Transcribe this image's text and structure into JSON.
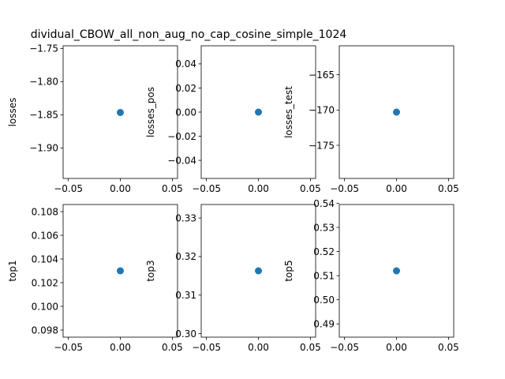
{
  "figure": {
    "title": "dividual_CBOW_all_non_aug_no_cap_cosine_simple_1024"
  },
  "colors": {
    "point": "#1f77b4",
    "axes": "#000000",
    "background": "#ffffff"
  },
  "chart_data": [
    {
      "type": "scatter",
      "ylabel": "losses",
      "x": [
        0.0
      ],
      "y": [
        -1.8466
      ],
      "xlim": [
        -0.055,
        0.055
      ],
      "ylim": [
        -1.946,
        -1.746
      ],
      "xticks": [
        -0.05,
        0.0,
        0.05
      ],
      "xtick_labels": [
        "−0.05",
        "0.00",
        "0.05"
      ],
      "yticks": [
        -1.9,
        -1.85,
        -1.8,
        -1.75
      ],
      "ytick_labels": [
        "−1.90",
        "−1.85",
        "−1.80",
        "−1.75"
      ]
    },
    {
      "type": "scatter",
      "ylabel": "losses_pos",
      "x": [
        0.0
      ],
      "y": [
        0.0
      ],
      "xlim": [
        -0.055,
        0.055
      ],
      "ylim": [
        -0.055,
        0.055
      ],
      "xticks": [
        -0.05,
        0.0,
        0.05
      ],
      "xtick_labels": [
        "−0.05",
        "0.00",
        "0.05"
      ],
      "yticks": [
        -0.04,
        -0.02,
        0.0,
        0.02,
        0.04
      ],
      "ytick_labels": [
        "−0.04",
        "−0.02",
        "0.00",
        "0.02",
        "0.04"
      ]
    },
    {
      "type": "scatter",
      "ylabel": "losses_test",
      "x": [
        0.0
      ],
      "y": [
        -170.3
      ],
      "xlim": [
        -0.055,
        0.055
      ],
      "ylim": [
        -179.7,
        -160.9
      ],
      "xticks": [
        -0.05,
        0.0,
        0.05
      ],
      "xtick_labels": [
        "−0.05",
        "0.00",
        "0.05"
      ],
      "yticks": [
        -175,
        -170,
        -165
      ],
      "ytick_labels": [
        "−175",
        "−170",
        "−165"
      ]
    },
    {
      "type": "scatter",
      "ylabel": "top1",
      "x": [
        0.0
      ],
      "y": [
        0.103
      ],
      "xlim": [
        -0.055,
        0.055
      ],
      "ylim": [
        0.0974,
        0.1086
      ],
      "xticks": [
        -0.05,
        0.0,
        0.05
      ],
      "xtick_labels": [
        "−0.05",
        "0.00",
        "0.05"
      ],
      "yticks": [
        0.098,
        0.1,
        0.102,
        0.104,
        0.106,
        0.108
      ],
      "ytick_labels": [
        "0.098",
        "0.100",
        "0.102",
        "0.104",
        "0.106",
        "0.108"
      ]
    },
    {
      "type": "scatter",
      "ylabel": "top3",
      "x": [
        0.0
      ],
      "y": [
        0.3163
      ],
      "xlim": [
        -0.055,
        0.055
      ],
      "ylim": [
        0.2991,
        0.3335
      ],
      "xticks": [
        -0.05,
        0.0,
        0.05
      ],
      "xtick_labels": [
        "−0.05",
        "0.00",
        "0.05"
      ],
      "yticks": [
        0.3,
        0.31,
        0.32,
        0.33
      ],
      "ytick_labels": [
        "0.30",
        "0.31",
        "0.32",
        "0.33"
      ]
    },
    {
      "type": "scatter",
      "ylabel": "top5",
      "x": [
        0.0
      ],
      "y": [
        0.512
      ],
      "xlim": [
        -0.055,
        0.055
      ],
      "ylim": [
        0.4845,
        0.5395
      ],
      "xticks": [
        -0.05,
        0.0,
        0.05
      ],
      "xtick_labels": [
        "−0.05",
        "0.00",
        "0.05"
      ],
      "yticks": [
        0.49,
        0.5,
        0.51,
        0.52,
        0.53,
        0.54
      ],
      "ytick_labels": [
        "0.49",
        "0.50",
        "0.51",
        "0.52",
        "0.53",
        "0.54"
      ]
    }
  ]
}
